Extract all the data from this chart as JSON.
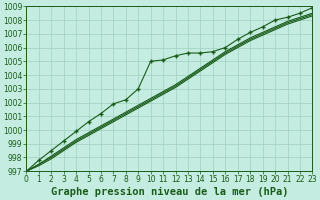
{
  "xlabel": "Graphe pression niveau de la mer (hPa)",
  "background_color": "#c5ece0",
  "grid_color": "#9ecfbe",
  "line_color": "#1a5c1a",
  "xlim": [
    0,
    23
  ],
  "ylim": [
    997,
    1009
  ],
  "yticks": [
    997,
    998,
    999,
    1000,
    1001,
    1002,
    1003,
    1004,
    1005,
    1006,
    1007,
    1008,
    1009
  ],
  "xticks": [
    0,
    1,
    2,
    3,
    4,
    5,
    6,
    7,
    8,
    9,
    10,
    11,
    12,
    13,
    14,
    15,
    16,
    17,
    18,
    19,
    20,
    21,
    22,
    23
  ],
  "hours": [
    0,
    1,
    2,
    3,
    4,
    5,
    6,
    7,
    8,
    9,
    10,
    11,
    12,
    13,
    14,
    15,
    16,
    17,
    18,
    19,
    20,
    21,
    22,
    23
  ],
  "line_smooth1": [
    997.0,
    997.5,
    998.1,
    998.7,
    999.3,
    999.8,
    1000.3,
    1000.8,
    1001.3,
    1001.8,
    1002.3,
    1002.8,
    1003.3,
    1003.9,
    1004.5,
    1005.1,
    1005.7,
    1006.2,
    1006.7,
    1007.1,
    1007.5,
    1007.9,
    1008.2,
    1008.5
  ],
  "line_smooth2": [
    997.0,
    997.5,
    998.0,
    998.6,
    999.2,
    999.7,
    1000.2,
    1000.7,
    1001.2,
    1001.7,
    1002.2,
    1002.7,
    1003.2,
    1003.8,
    1004.4,
    1005.0,
    1005.6,
    1006.1,
    1006.6,
    1007.0,
    1007.4,
    1007.8,
    1008.1,
    1008.4
  ],
  "line_smooth3": [
    997.0,
    997.4,
    997.9,
    998.5,
    999.1,
    999.6,
    1000.1,
    1000.6,
    1001.1,
    1001.6,
    1002.1,
    1002.6,
    1003.1,
    1003.7,
    1004.3,
    1004.9,
    1005.5,
    1006.0,
    1006.5,
    1006.9,
    1007.3,
    1007.7,
    1008.0,
    1008.3
  ],
  "marker_line": [
    997.0,
    997.8,
    998.5,
    999.2,
    999.9,
    1000.6,
    1001.2,
    1001.9,
    1002.2,
    1003.0,
    1005.0,
    1005.1,
    1005.4,
    1005.6,
    1005.6,
    1005.7,
    1006.0,
    1006.6,
    1007.1,
    1007.5,
    1008.0,
    1008.2,
    1008.5,
    1008.9
  ],
  "title_fontsize": 7.5,
  "tick_fontsize": 5.5
}
